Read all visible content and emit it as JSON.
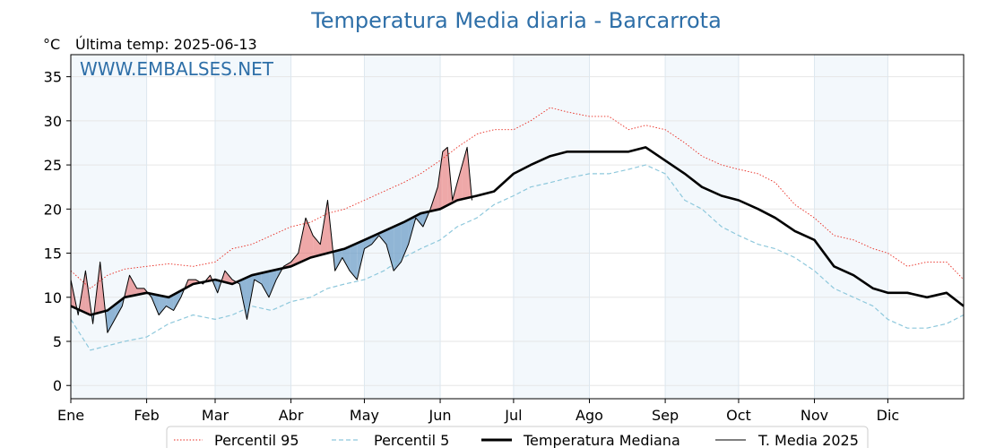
{
  "chart_data": {
    "type": "line",
    "title": "Temperatura Media diaria - Barcarrota",
    "ylabel": "°C",
    "last_update_label": "Última temp: 2025-06-13",
    "watermark": "WWW.EMBALSES.NET",
    "ylim": [
      -1.5,
      37.5
    ],
    "yticks": [
      0,
      5,
      10,
      15,
      20,
      25,
      30,
      35
    ],
    "xlim": [
      0,
      365
    ],
    "grid": true,
    "months": [
      {
        "label": "Ene",
        "start": 0
      },
      {
        "label": "Feb",
        "start": 31
      },
      {
        "label": "Mar",
        "start": 59
      },
      {
        "label": "Abr",
        "start": 90
      },
      {
        "label": "May",
        "start": 120
      },
      {
        "label": "Jun",
        "start": 151
      },
      {
        "label": "Jul",
        "start": 181
      },
      {
        "label": "Ago",
        "start": 212
      },
      {
        "label": "Sep",
        "start": 243
      },
      {
        "label": "Oct",
        "start": 273
      },
      {
        "label": "Nov",
        "start": 304
      },
      {
        "label": "Dic",
        "start": 334
      }
    ],
    "legend_position": "bottom-center",
    "series": [
      {
        "name": "Percentil 95",
        "color": "#e8281e",
        "style": "dotted",
        "x": [
          0,
          8,
          15,
          22,
          31,
          40,
          50,
          59,
          66,
          74,
          82,
          90,
          98,
          105,
          112,
          120,
          128,
          136,
          143,
          151,
          158,
          166,
          173,
          181,
          188,
          196,
          203,
          212,
          220,
          228,
          235,
          243,
          251,
          258,
          266,
          273,
          281,
          288,
          296,
          304,
          312,
          320,
          328,
          334,
          342,
          350,
          358,
          365
        ],
        "y": [
          13,
          11,
          12.5,
          13.2,
          13.5,
          13.8,
          13.5,
          14,
          15.5,
          16,
          17,
          18,
          18.5,
          19.5,
          20,
          21,
          22,
          23,
          24,
          25.5,
          27,
          28.5,
          29,
          29,
          30,
          31.5,
          31,
          30.5,
          30.5,
          29,
          29.5,
          29,
          27.5,
          26,
          25,
          24.5,
          24,
          23,
          20.5,
          19,
          17,
          16.5,
          15.5,
          15,
          13.5,
          14,
          14,
          12
        ]
      },
      {
        "name": "Percentil 5",
        "color": "#8ec8dc",
        "style": "dashed",
        "x": [
          0,
          8,
          15,
          22,
          31,
          40,
          50,
          59,
          66,
          74,
          82,
          90,
          98,
          105,
          112,
          120,
          128,
          136,
          143,
          151,
          158,
          166,
          173,
          181,
          188,
          196,
          203,
          212,
          220,
          228,
          235,
          243,
          251,
          258,
          266,
          273,
          281,
          288,
          296,
          304,
          312,
          320,
          328,
          334,
          342,
          350,
          358,
          365
        ],
        "y": [
          7.5,
          4,
          4.5,
          5,
          5.5,
          7,
          8,
          7.5,
          8,
          9,
          8.5,
          9.5,
          10,
          11,
          11.5,
          12,
          13,
          14.5,
          15.5,
          16.5,
          18,
          19,
          20.5,
          21.5,
          22.5,
          23,
          23.5,
          24,
          24,
          24.5,
          25,
          24,
          21,
          20,
          18,
          17,
          16,
          15.5,
          14.5,
          13,
          11,
          10,
          9,
          7.5,
          6.5,
          6.5,
          7,
          8
        ]
      },
      {
        "name": "Temperatura Mediana",
        "color": "#000000",
        "style": "thick",
        "x": [
          0,
          8,
          15,
          22,
          31,
          40,
          50,
          59,
          66,
          74,
          82,
          90,
          98,
          105,
          112,
          120,
          128,
          136,
          143,
          151,
          158,
          166,
          173,
          181,
          188,
          196,
          203,
          212,
          220,
          228,
          235,
          243,
          251,
          258,
          266,
          273,
          281,
          288,
          296,
          304,
          312,
          320,
          328,
          334,
          342,
          350,
          358,
          365
        ],
        "y": [
          9,
          8,
          8.5,
          10,
          10.5,
          10,
          11.5,
          12,
          11.5,
          12.5,
          13,
          13.5,
          14.5,
          15,
          15.5,
          16.5,
          17.5,
          18.5,
          19.5,
          20,
          21,
          21.5,
          22,
          24,
          25,
          26,
          26.5,
          26.5,
          26.5,
          26.5,
          27,
          25.5,
          24,
          22.5,
          21.5,
          21,
          20,
          19,
          17.5,
          16.5,
          13.5,
          12.5,
          11,
          10.5,
          10.5,
          10,
          10.5,
          9
        ]
      },
      {
        "name": "T. Media 2025",
        "color": "#000000",
        "style": "thin",
        "x": [
          0,
          3,
          6,
          9,
          12,
          15,
          18,
          21,
          24,
          27,
          30,
          33,
          36,
          39,
          42,
          45,
          48,
          51,
          54,
          57,
          60,
          63,
          66,
          69,
          72,
          75,
          78,
          81,
          84,
          87,
          90,
          93,
          96,
          99,
          102,
          105,
          108,
          111,
          114,
          117,
          120,
          123,
          126,
          129,
          132,
          135,
          138,
          141,
          144,
          147,
          150,
          152,
          154,
          156,
          158,
          160,
          162,
          164
        ],
        "y": [
          12,
          8,
          13,
          7,
          14,
          6,
          7.5,
          9,
          12.5,
          11,
          11,
          10,
          8,
          9,
          8.5,
          10,
          12,
          12,
          11.5,
          12.5,
          10.5,
          13,
          12,
          11.5,
          7.5,
          12,
          11.5,
          10,
          12,
          13.5,
          14,
          15,
          19,
          17,
          16,
          21,
          13,
          14.5,
          13,
          12,
          15.5,
          16,
          17,
          16,
          13,
          14,
          16,
          19,
          18,
          20,
          22.5,
          26.5,
          27,
          21,
          23,
          25,
          27,
          21
        ]
      }
    ]
  }
}
